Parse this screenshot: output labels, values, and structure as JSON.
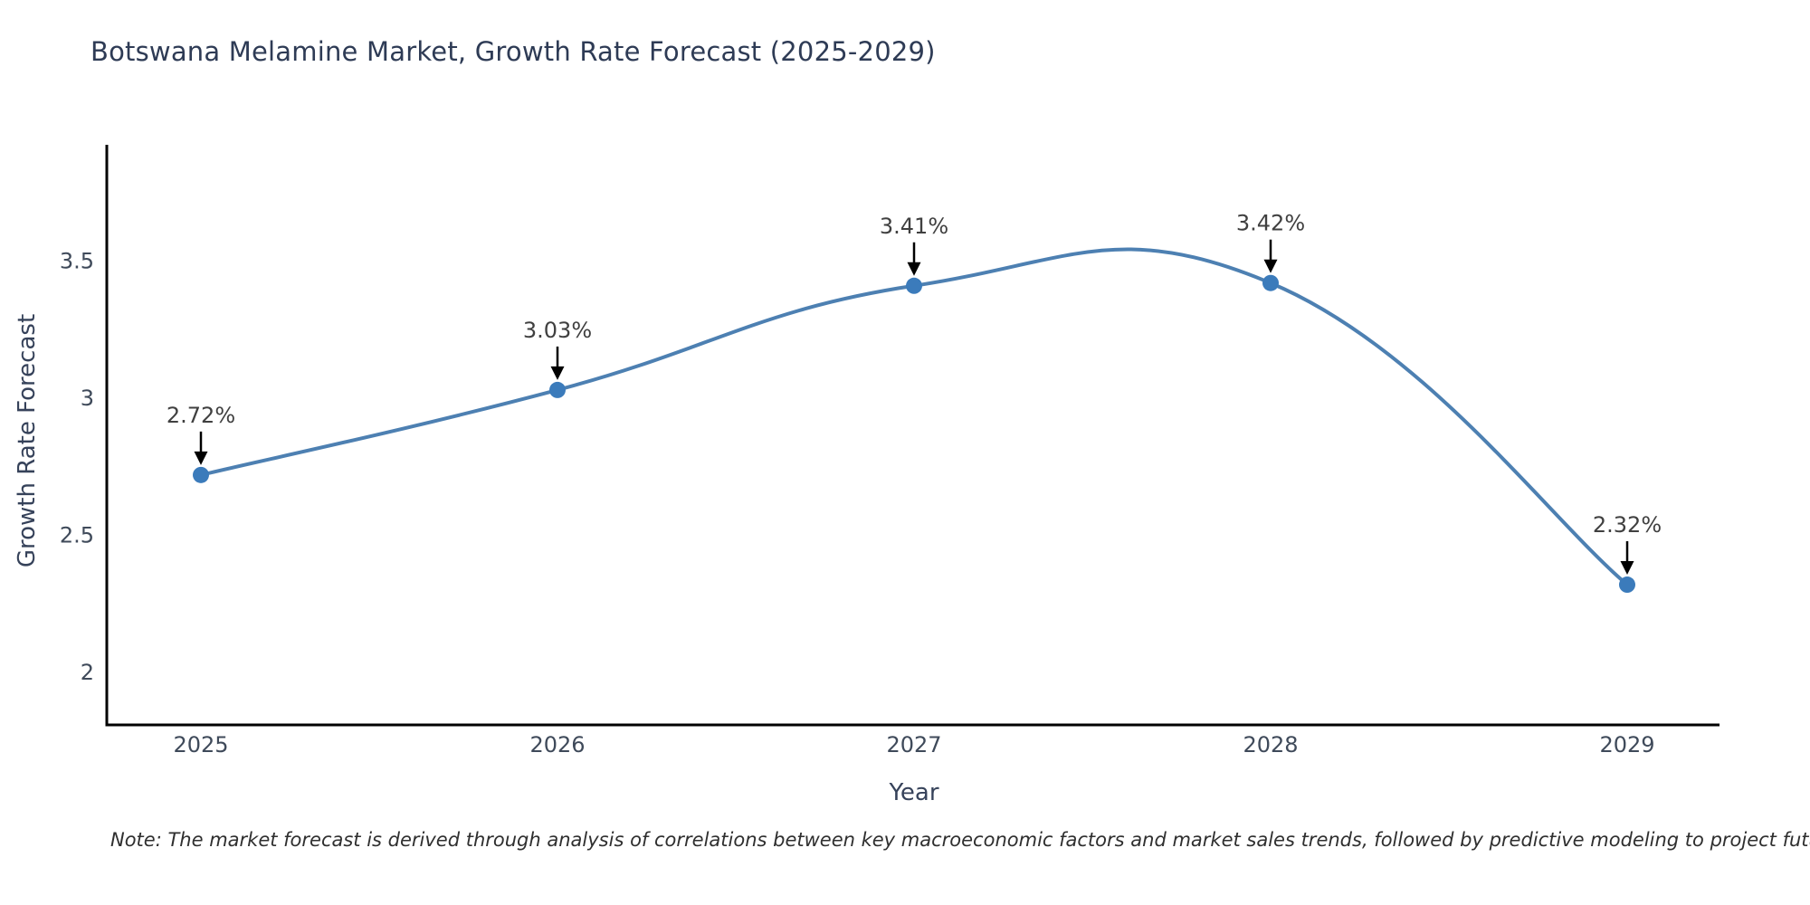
{
  "title": "Botswana Melamine Market, Growth Rate Forecast (2025-2029)",
  "note": "Note: The market forecast is derived through analysis of correlations between key macroeconomic factors and market sales trends, followed by predictive modeling to project future sales",
  "chart_data": {
    "type": "line",
    "title": "Botswana Melamine Market, Growth Rate Forecast (2025-2029)",
    "xlabel": "Year",
    "ylabel": "Growth Rate Forecast",
    "x": [
      2025,
      2026,
      2027,
      2028,
      2029
    ],
    "y": [
      2.72,
      3.03,
      3.41,
      3.42,
      2.32
    ],
    "point_labels": [
      "2.72%",
      "3.03%",
      "3.41%",
      "3.42%",
      "2.32%"
    ],
    "series_name": "Growth Rate Forecast",
    "xticks": [
      "2025",
      "2026",
      "2027",
      "2028",
      "2029"
    ],
    "yticks": [
      2,
      2.5,
      3,
      3.5
    ],
    "xlim": [
      2024.74,
      2029.26
    ],
    "ylim": [
      1.81,
      3.92
    ],
    "line_shape": "spline",
    "grid": false,
    "legend_position": "none",
    "annotations_have_arrows": true,
    "colors": {
      "line": "#4d80b2",
      "marker": "#3b7bbb",
      "axis_line": "#000000",
      "title_text": "#2e3b55",
      "axis_title_text": "#36425a",
      "tick_text": "#3f4a5a",
      "annotation_text": "#404040",
      "note_text": "#2f2f2f",
      "background": "#ffffff"
    }
  }
}
